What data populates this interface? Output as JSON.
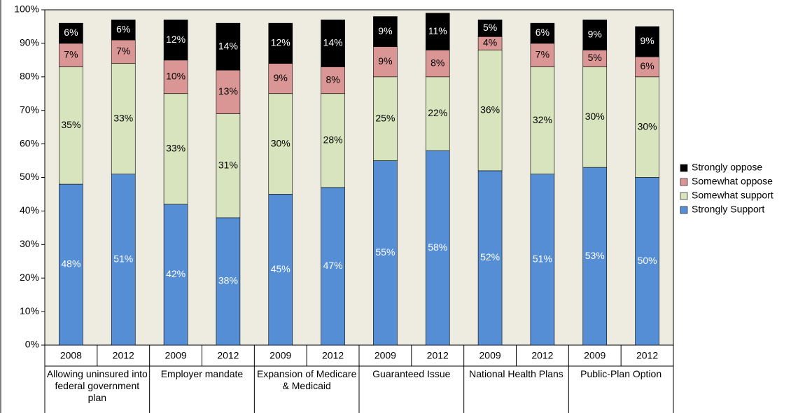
{
  "chart_data": {
    "type": "stacked_bar",
    "categories": [
      "2008",
      "2012",
      "2009",
      "2012",
      "2009",
      "2012",
      "2009",
      "2012",
      "2009",
      "2012",
      "2009",
      "2012"
    ],
    "groups": [
      "Allowing uninsured into federal government plan",
      "Employer mandate",
      "Expansion of Medicare & Medicaid",
      "Guaranteed Issue",
      "National Health Plans",
      "Public-Plan Option"
    ],
    "series": [
      {
        "name": "Strongly Support",
        "color": "#558ed5",
        "label_color": "#ffffff",
        "values": [
          48,
          51,
          42,
          38,
          45,
          47,
          55,
          58,
          52,
          51,
          53,
          50
        ],
        "value_labels": [
          "48%",
          "51%",
          "42%",
          "38%",
          "45%",
          "47%",
          "55%",
          "58%",
          "52%",
          "51%",
          "53%",
          "50%"
        ]
      },
      {
        "name": "Somewhat support",
        "color": "#d7e4bd",
        "label_color": "#000000",
        "values": [
          35,
          33,
          33,
          31,
          30,
          28,
          25,
          22,
          36,
          32,
          30,
          30
        ],
        "value_labels": [
          "35%",
          "33%",
          "33%",
          "31%",
          "30%",
          "28%",
          "25%",
          "22%",
          "36%",
          "32%",
          "30%",
          "30%"
        ]
      },
      {
        "name": "Somewhat oppose",
        "color": "#d99694",
        "label_color": "#000000",
        "values": [
          7,
          7,
          10,
          13,
          9,
          8,
          9,
          8,
          4,
          7,
          5,
          6
        ],
        "value_labels": [
          "7%",
          "7%",
          "10%",
          "13%",
          "9%",
          "8%",
          "9%",
          "8%",
          "4%",
          "7%",
          "5%",
          "6%"
        ]
      },
      {
        "name": "Strongly oppose",
        "color": "#000000",
        "label_color": "#ffffff",
        "values": [
          6,
          6,
          12,
          14,
          12,
          14,
          9,
          11,
          5,
          6,
          9,
          9
        ],
        "value_labels": [
          "6%",
          "6%",
          "12%",
          "14%",
          "12%",
          "14%",
          "9%",
          "11%",
          "5%",
          "6%",
          "9%",
          "9%"
        ]
      }
    ],
    "ylim": [
      0,
      100
    ],
    "yticks": [
      {
        "value": 0,
        "label": "0%"
      },
      {
        "value": 10,
        "label": "10%"
      },
      {
        "value": 20,
        "label": "20%"
      },
      {
        "value": 30,
        "label": "30%"
      },
      {
        "value": 40,
        "label": "40%"
      },
      {
        "value": 50,
        "label": "50%"
      },
      {
        "value": 60,
        "label": "60%"
      },
      {
        "value": 70,
        "label": "70%"
      },
      {
        "value": 80,
        "label": "80%"
      },
      {
        "value": 90,
        "label": "90%"
      },
      {
        "value": 100,
        "label": "100%"
      }
    ],
    "legend": "right"
  }
}
